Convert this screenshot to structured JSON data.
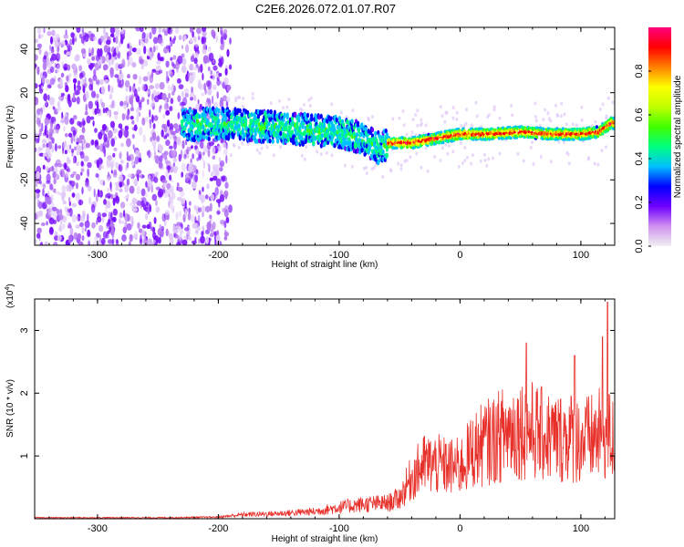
{
  "title": "C2E6.2026.072.01.07.R07",
  "chart_data": [
    {
      "type": "heatmap",
      "xlabel": "Height of straight line (km)",
      "ylabel": "Frequency (Hz)",
      "xlim": [
        -352,
        128
      ],
      "ylim": [
        -50,
        50
      ],
      "xticks": [
        -300,
        -200,
        -100,
        0,
        100
      ],
      "yticks": [
        -40,
        -20,
        0,
        20,
        40
      ],
      "colorbar": {
        "label": "Normalized spectral amplitude",
        "range": [
          0,
          1
        ],
        "ticks": [
          0.0,
          0.2,
          0.4,
          0.6,
          0.8
        ],
        "tick_labels": [
          "0.0",
          "0.2",
          "0.4",
          "0.6",
          "0.8"
        ],
        "colors": [
          "#f0f0f0",
          "#d090f0",
          "#7000ff",
          "#0000ff",
          "#00c0ff",
          "#00ff80",
          "#40ff00",
          "#c0ff00",
          "#ffff00",
          "#ff8000",
          "#ff0000",
          "#ff0080"
        ]
      },
      "ridge": [
        {
          "x": -225,
          "f": 5
        },
        {
          "x": -200,
          "f": 6
        },
        {
          "x": -175,
          "f": 5
        },
        {
          "x": -150,
          "f": 4
        },
        {
          "x": -125,
          "f": 3
        },
        {
          "x": -100,
          "f": 2
        },
        {
          "x": -80,
          "f": -1
        },
        {
          "x": -65,
          "f": -6
        },
        {
          "x": -60,
          "f": -3
        },
        {
          "x": -40,
          "f": -3
        },
        {
          "x": -20,
          "f": -1
        },
        {
          "x": 0,
          "f": 1
        },
        {
          "x": 25,
          "f": 1
        },
        {
          "x": 50,
          "f": 2
        },
        {
          "x": 75,
          "f": 1
        },
        {
          "x": 100,
          "f": 1
        },
        {
          "x": 115,
          "f": 2
        },
        {
          "x": 125,
          "f": 6
        }
      ]
    },
    {
      "type": "line",
      "xlabel": "Height of straight line (km)",
      "ylabel": "SNR (10 * v/v)",
      "exponent_label": "(x10",
      "exponent_power": "4",
      "xlim": [
        -352,
        128
      ],
      "ylim": [
        0,
        3.5
      ],
      "xticks": [
        -300,
        -200,
        -100,
        0,
        100
      ],
      "yticks": [
        1,
        2,
        3
      ],
      "color": "#e8302a",
      "envelope": [
        {
          "x": -352,
          "y": 0.02
        },
        {
          "x": -250,
          "y": 0.02
        },
        {
          "x": -200,
          "y": 0.03
        },
        {
          "x": -180,
          "y": 0.08
        },
        {
          "x": -150,
          "y": 0.1
        },
        {
          "x": -120,
          "y": 0.14
        },
        {
          "x": -100,
          "y": 0.22
        },
        {
          "x": -80,
          "y": 0.28
        },
        {
          "x": -60,
          "y": 0.3
        },
        {
          "x": -50,
          "y": 0.4
        },
        {
          "x": -40,
          "y": 0.8
        },
        {
          "x": -30,
          "y": 1.05
        },
        {
          "x": -20,
          "y": 1.05
        },
        {
          "x": -10,
          "y": 1.0
        },
        {
          "x": 0,
          "y": 1.0
        },
        {
          "x": 10,
          "y": 1.3
        },
        {
          "x": 20,
          "y": 1.45
        },
        {
          "x": 30,
          "y": 1.55
        },
        {
          "x": 40,
          "y": 1.7
        },
        {
          "x": 50,
          "y": 1.75
        },
        {
          "x": 60,
          "y": 1.7
        },
        {
          "x": 70,
          "y": 1.6
        },
        {
          "x": 80,
          "y": 1.55
        },
        {
          "x": 90,
          "y": 1.6
        },
        {
          "x": 100,
          "y": 1.5
        },
        {
          "x": 110,
          "y": 1.55
        },
        {
          "x": 120,
          "y": 1.65
        },
        {
          "x": 128,
          "y": 1.5
        }
      ],
      "peaks": [
        {
          "x": 55,
          "y": 2.8
        },
        {
          "x": 122,
          "y": 3.45
        },
        {
          "x": 118,
          "y": 2.9
        },
        {
          "x": 95,
          "y": 2.6
        }
      ]
    }
  ]
}
